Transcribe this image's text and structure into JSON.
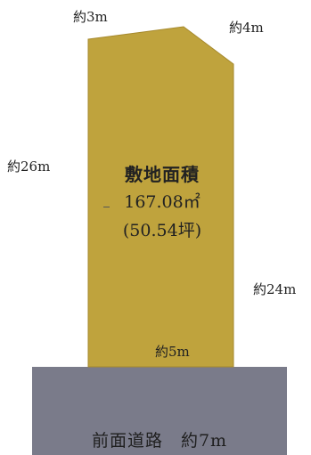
{
  "colors": {
    "lot_fill": "#bfa33d",
    "lot_stroke": "#a6892d",
    "road_fill": "#7a7b8a",
    "background": "#ffffff"
  },
  "lot": {
    "title": "敷地面積",
    "area_m2": "167.08㎡",
    "area_tsubo": "(50.54坪)"
  },
  "dimensions": {
    "top_left": "約3m",
    "top_right": "約4m",
    "left": "約26m",
    "right": "約24m",
    "bottom": "約5m"
  },
  "road": {
    "label": "前面道路　約7m"
  }
}
